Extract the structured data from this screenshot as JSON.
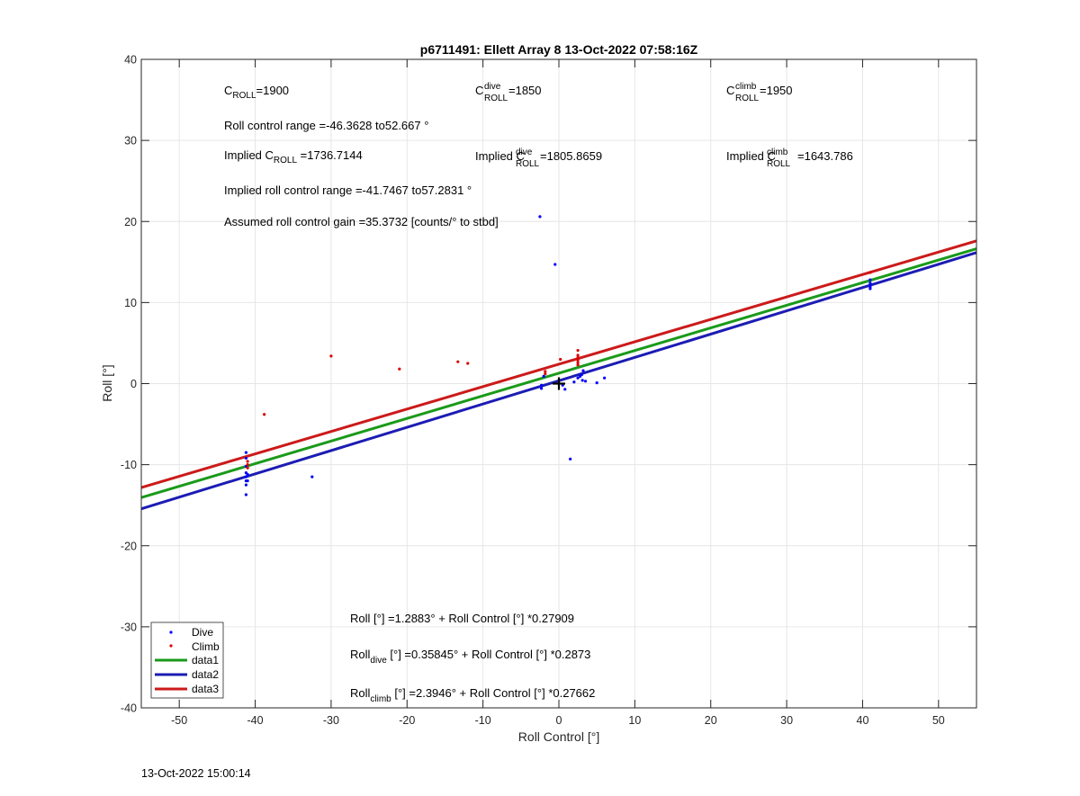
{
  "chart_data": {
    "type": "scatter",
    "title": "p6711491: Ellett Array 8 13-Oct-2022 07:58:16Z",
    "xlabel": "Roll Control [°]",
    "ylabel": "Roll [°]",
    "xlim": [
      -55,
      55
    ],
    "ylim": [
      -40,
      40
    ],
    "xticks": [
      -50,
      -40,
      -30,
      -20,
      -10,
      0,
      10,
      20,
      30,
      40,
      50
    ],
    "yticks": [
      -40,
      -30,
      -20,
      -10,
      0,
      10,
      20,
      30,
      40
    ],
    "grid": true,
    "legend_position": "bottom-left",
    "series": [
      {
        "name": "Dive",
        "kind": "scatter",
        "color": "#0000ff",
        "points": [
          [
            -41.2,
            -8.5
          ],
          [
            -41.2,
            -9.2
          ],
          [
            -41.2,
            -10.2
          ],
          [
            -41.2,
            -11.0
          ],
          [
            -41.2,
            -11.5
          ],
          [
            -41.2,
            -12.0
          ],
          [
            -41.2,
            -12.5
          ],
          [
            -41.2,
            -13.7
          ],
          [
            -41.0,
            -11.2
          ],
          [
            -41.0,
            -12.0
          ],
          [
            -32.5,
            -11.5
          ],
          [
            -2.5,
            20.6
          ],
          [
            -0.5,
            14.7
          ],
          [
            -2.3,
            -0.2
          ],
          [
            -2.3,
            -0.6
          ],
          [
            -2.0,
            0.9
          ],
          [
            0.5,
            -0.2
          ],
          [
            0.8,
            -0.7
          ],
          [
            2.0,
            0.2
          ],
          [
            2.5,
            0.7
          ],
          [
            2.8,
            0.9
          ],
          [
            3.0,
            1.1
          ],
          [
            3.1,
            0.4
          ],
          [
            3.2,
            1.6
          ],
          [
            3.5,
            0.3
          ],
          [
            5.0,
            0.1
          ],
          [
            6.0,
            0.7
          ],
          [
            1.5,
            -9.3
          ],
          [
            41.0,
            11.7
          ],
          [
            41.0,
            12.1
          ],
          [
            41.0,
            12.4
          ],
          [
            41.0,
            12.8
          ],
          [
            41.0,
            11.9
          ]
        ]
      },
      {
        "name": "Climb",
        "kind": "scatter",
        "color": "#dd0000",
        "points": [
          [
            -41.0,
            -9.6
          ],
          [
            -41.0,
            -10.0
          ],
          [
            -41.0,
            -10.4
          ],
          [
            -38.8,
            -3.8
          ],
          [
            -30.0,
            3.4
          ],
          [
            -21.0,
            1.8
          ],
          [
            -13.3,
            2.7
          ],
          [
            -12.0,
            2.5
          ],
          [
            -1.8,
            1.2
          ],
          [
            -1.8,
            1.5
          ],
          [
            0.2,
            3.0
          ],
          [
            2.5,
            2.3
          ],
          [
            2.5,
            2.6
          ],
          [
            2.5,
            2.9
          ],
          [
            2.5,
            3.2
          ],
          [
            2.5,
            3.5
          ],
          [
            2.5,
            4.1
          ],
          [
            41.0,
            13.7
          ]
        ]
      },
      {
        "name": "data1",
        "kind": "line",
        "color": "#1a9a1a",
        "intercept": 1.2883,
        "slope": 0.27909
      },
      {
        "name": "data2",
        "kind": "line",
        "color": "#1c1cb4",
        "intercept": 0.35845,
        "slope": 0.2873
      },
      {
        "name": "data3",
        "kind": "line",
        "color": "#cc1a1a",
        "intercept": 2.3946,
        "slope": 0.27662
      }
    ],
    "marker_cross": [
      0,
      0
    ],
    "annotations": {
      "c_roll": {
        "base": "C",
        "sub": "ROLL",
        "value": "=1900"
      },
      "c_roll_dive": {
        "base": "C",
        "sup": "dive",
        "sub": "ROLL",
        "value": " =1850"
      },
      "c_roll_climb": {
        "base": "C",
        "sup": "climb",
        "sub": "ROLL",
        "value": " =1950"
      },
      "roll_range": "Roll control range =-46.3628 to52.667 °",
      "implied_c_roll": {
        "prefix": "Implied C",
        "sub": "ROLL",
        "value": " =1736.7144"
      },
      "implied_c_roll_dive": {
        "prefix": "Implied C",
        "sup": "dive",
        "sub": "ROLL",
        "value": " =1805.8659"
      },
      "implied_c_roll_climb": {
        "prefix": "Implied C",
        "sup": "climb",
        "sub": "ROLL",
        "value": " =1643.786"
      },
      "implied_range": "Implied roll control range =-41.7467 to57.2831 °",
      "gain": "Assumed roll control gain =35.3732 [counts/° to stbd]",
      "eq_all": "Roll [°] =1.2883° + Roll Control [°] *0.27909",
      "eq_dive": {
        "prefix": "Roll",
        "sub": "dive",
        "rest": " [°] =0.35845° + Roll Control [°] *0.2873"
      },
      "eq_climb": {
        "prefix": "Roll",
        "sub": "climb",
        "rest": " [°] =2.3946° + Roll Control [°] *0.27662"
      }
    }
  },
  "footer_timestamp": "13-Oct-2022 15:00:14"
}
